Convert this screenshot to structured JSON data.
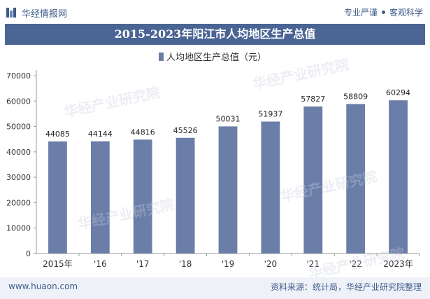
{
  "header": {
    "brand_name": "华经情报网",
    "tag_left": "专业严谨",
    "tag_right": "客观科学"
  },
  "footer": {
    "site": "www.huaon.com",
    "source": "资料来源：统计局，华经产业研究院整理"
  },
  "watermark": "华经产业研究院",
  "colors": {
    "bar": "#6a7ea8",
    "title_bg": "#4a6494",
    "brand": "#3e5a8a"
  },
  "chart_data": {
    "type": "bar",
    "title": "2015-2023年阳江市人均地区生产总值",
    "series": [
      {
        "name": "人均地区生产总值（元）",
        "values": [
          44085,
          44144,
          44816,
          45526,
          50031,
          51937,
          57827,
          58809,
          60294
        ]
      }
    ],
    "categories": [
      "2015年",
      "'16",
      "'17",
      "'18",
      "'19",
      "'20",
      "'21",
      "'22",
      "2023年"
    ],
    "ylim": [
      0,
      70000
    ],
    "yticks": [
      0,
      10000,
      20000,
      30000,
      40000,
      50000,
      60000,
      70000
    ],
    "legend": "top-center",
    "grid": false
  }
}
